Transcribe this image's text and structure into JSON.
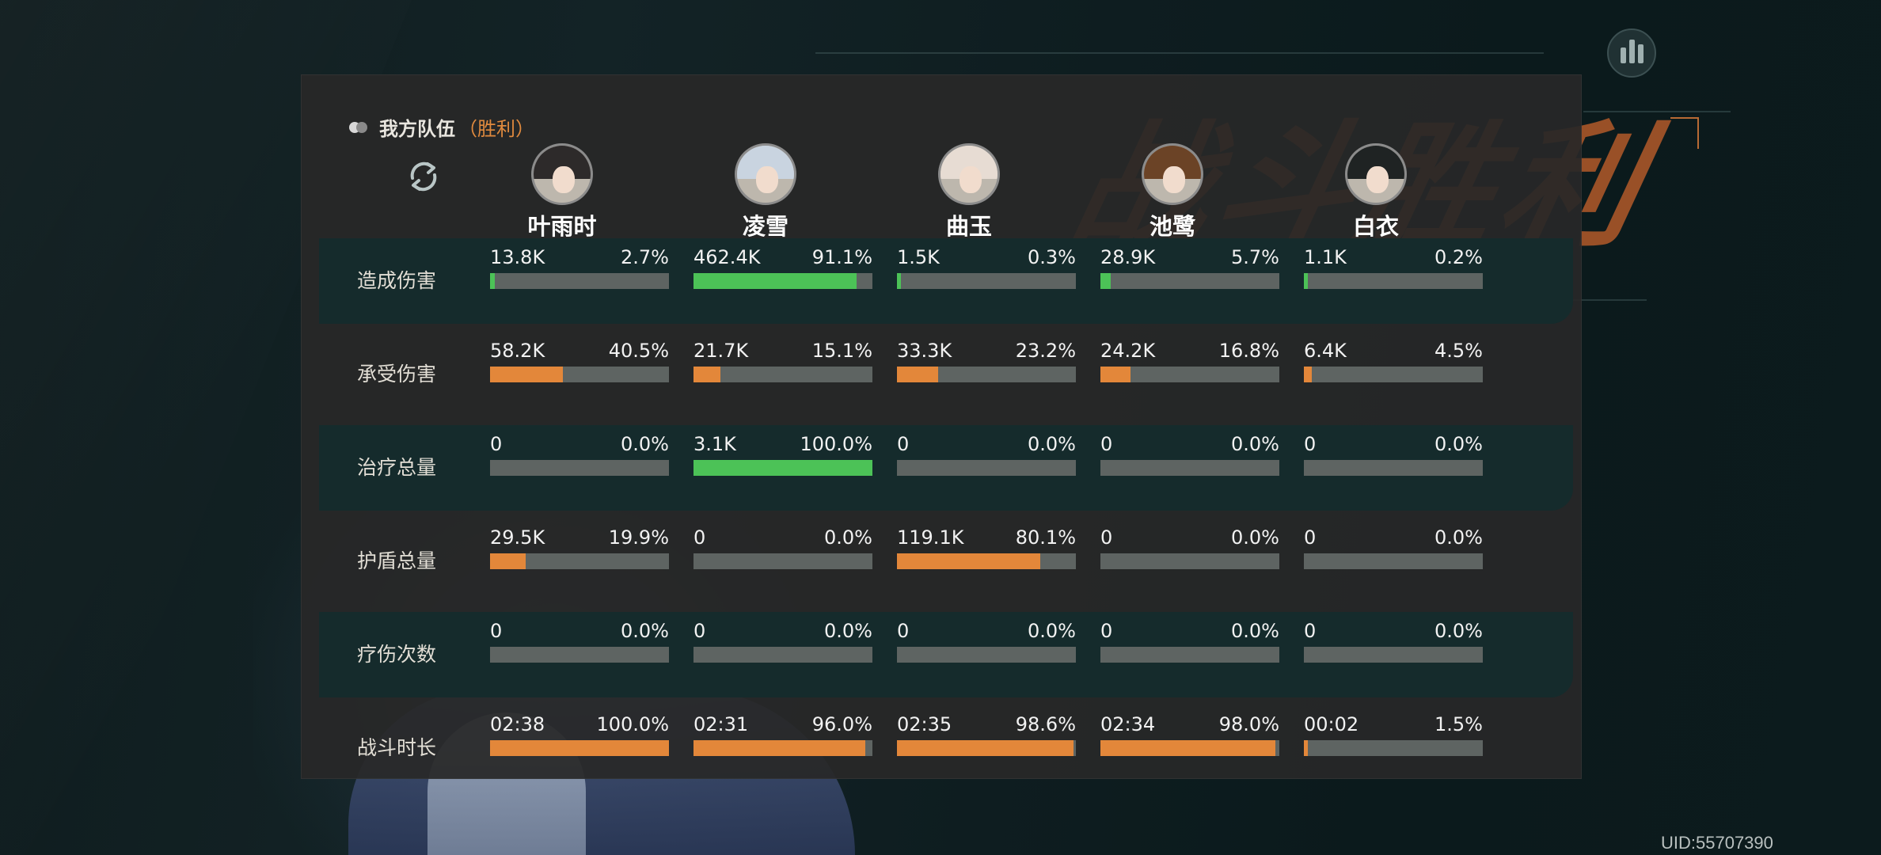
{
  "team": {
    "title": "我方队伍",
    "result": "（胜利）"
  },
  "heroes": [
    {
      "name": "叶雨时",
      "hair": "#2d2a2a"
    },
    {
      "name": "凌雪",
      "hair": "#c9d4e0"
    },
    {
      "name": "曲玉",
      "hair": "#e7dcd3"
    },
    {
      "name": "池鹭",
      "hair": "#6b4326"
    },
    {
      "name": "白衣",
      "hair": "#1f2323"
    }
  ],
  "rows": [
    {
      "label": "造成伤害",
      "color": "green",
      "cells": [
        {
          "value": "13.8K",
          "pct": "2.7%",
          "fill": 0.027
        },
        {
          "value": "462.4K",
          "pct": "91.1%",
          "fill": 0.911
        },
        {
          "value": "1.5K",
          "pct": "0.3%",
          "fill": 0.003
        },
        {
          "value": "28.9K",
          "pct": "5.7%",
          "fill": 0.057
        },
        {
          "value": "1.1K",
          "pct": "0.2%",
          "fill": 0.002
        }
      ]
    },
    {
      "label": "承受伤害",
      "color": "orange",
      "cells": [
        {
          "value": "58.2K",
          "pct": "40.5%",
          "fill": 0.405
        },
        {
          "value": "21.7K",
          "pct": "15.1%",
          "fill": 0.151
        },
        {
          "value": "33.3K",
          "pct": "23.2%",
          "fill": 0.232
        },
        {
          "value": "24.2K",
          "pct": "16.8%",
          "fill": 0.168
        },
        {
          "value": "6.4K",
          "pct": "4.5%",
          "fill": 0.045
        }
      ]
    },
    {
      "label": "治疗总量",
      "color": "green",
      "cells": [
        {
          "value": "0",
          "pct": "0.0%",
          "fill": 0
        },
        {
          "value": "3.1K",
          "pct": "100.0%",
          "fill": 1.0
        },
        {
          "value": "0",
          "pct": "0.0%",
          "fill": 0
        },
        {
          "value": "0",
          "pct": "0.0%",
          "fill": 0
        },
        {
          "value": "0",
          "pct": "0.0%",
          "fill": 0
        }
      ]
    },
    {
      "label": "护盾总量",
      "color": "orange",
      "cells": [
        {
          "value": "29.5K",
          "pct": "19.9%",
          "fill": 0.199
        },
        {
          "value": "0",
          "pct": "0.0%",
          "fill": 0
        },
        {
          "value": "119.1K",
          "pct": "80.1%",
          "fill": 0.801
        },
        {
          "value": "0",
          "pct": "0.0%",
          "fill": 0
        },
        {
          "value": "0",
          "pct": "0.0%",
          "fill": 0
        }
      ]
    },
    {
      "label": "疗伤次数",
      "color": "green",
      "cells": [
        {
          "value": "0",
          "pct": "0.0%",
          "fill": 0
        },
        {
          "value": "0",
          "pct": "0.0%",
          "fill": 0
        },
        {
          "value": "0",
          "pct": "0.0%",
          "fill": 0
        },
        {
          "value": "0",
          "pct": "0.0%",
          "fill": 0
        },
        {
          "value": "0",
          "pct": "0.0%",
          "fill": 0
        }
      ]
    },
    {
      "label": "战斗时长",
      "color": "orange",
      "cells": [
        {
          "value": "02:38",
          "pct": "100.0%",
          "fill": 1.0
        },
        {
          "value": "02:31",
          "pct": "96.0%",
          "fill": 0.96
        },
        {
          "value": "02:35",
          "pct": "98.6%",
          "fill": 0.986
        },
        {
          "value": "02:34",
          "pct": "98.0%",
          "fill": 0.98
        },
        {
          "value": "00:02",
          "pct": "1.5%",
          "fill": 0.015
        }
      ]
    }
  ],
  "background_title": "战斗胜利",
  "uid": "UID:55707390",
  "icons": {
    "refresh": "refresh-icon",
    "stats": "bar-chart-icon",
    "team": "team-toggle-icon"
  }
}
